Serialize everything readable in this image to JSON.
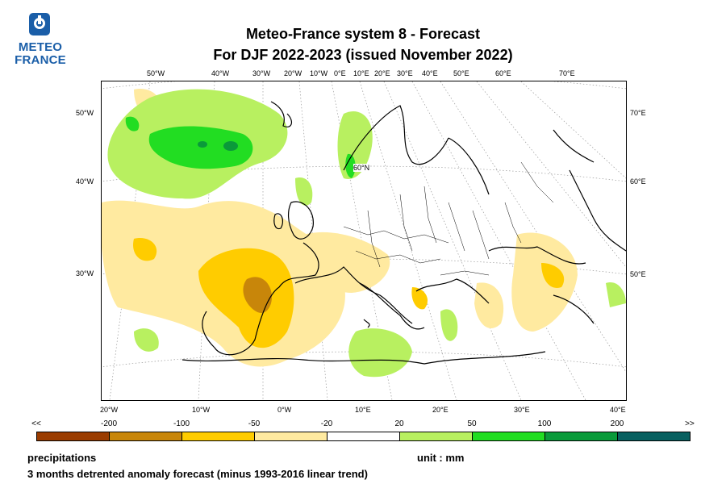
{
  "logo": {
    "line1": "METEO",
    "line2": "FRANCE"
  },
  "title": {
    "line1": "Meteo-France system 8  -  Forecast",
    "line2": "For DJF 2022-2023      (issued November 2022)"
  },
  "map": {
    "top_lon_labels": [
      "50°W",
      "40°W",
      "30°W",
      "20°W",
      "10°W",
      "0°E",
      "10°E",
      "20°E",
      "30°E",
      "40°E",
      "50°E",
      "60°E",
      "70°E"
    ],
    "bottom_lon_labels": [
      "20°W",
      "10°W",
      "0°W",
      "10°E",
      "20°E",
      "30°E",
      "40°E"
    ],
    "left_labels": [
      "50°W",
      "40°W",
      "30°W"
    ],
    "right_labels": [
      "70°E",
      "60°E",
      "50°E"
    ],
    "inner_label": "60°N"
  },
  "legend": {
    "labels": [
      "<<",
      "-200",
      "-100",
      "-50",
      "-20",
      "20",
      "50",
      "100",
      "200",
      ">>"
    ],
    "colors": [
      "#9a3c00",
      "#c8860a",
      "#ffcc00",
      "#ffeaa0",
      "#ffffff",
      "#b8f060",
      "#22dd22",
      "#0a9a3a",
      "#086060"
    ]
  },
  "footer": {
    "variable": "precipitations",
    "unit": "unit : mm",
    "description": "3 months detrented anomaly forecast (minus 1993-2016 linear trend)"
  }
}
